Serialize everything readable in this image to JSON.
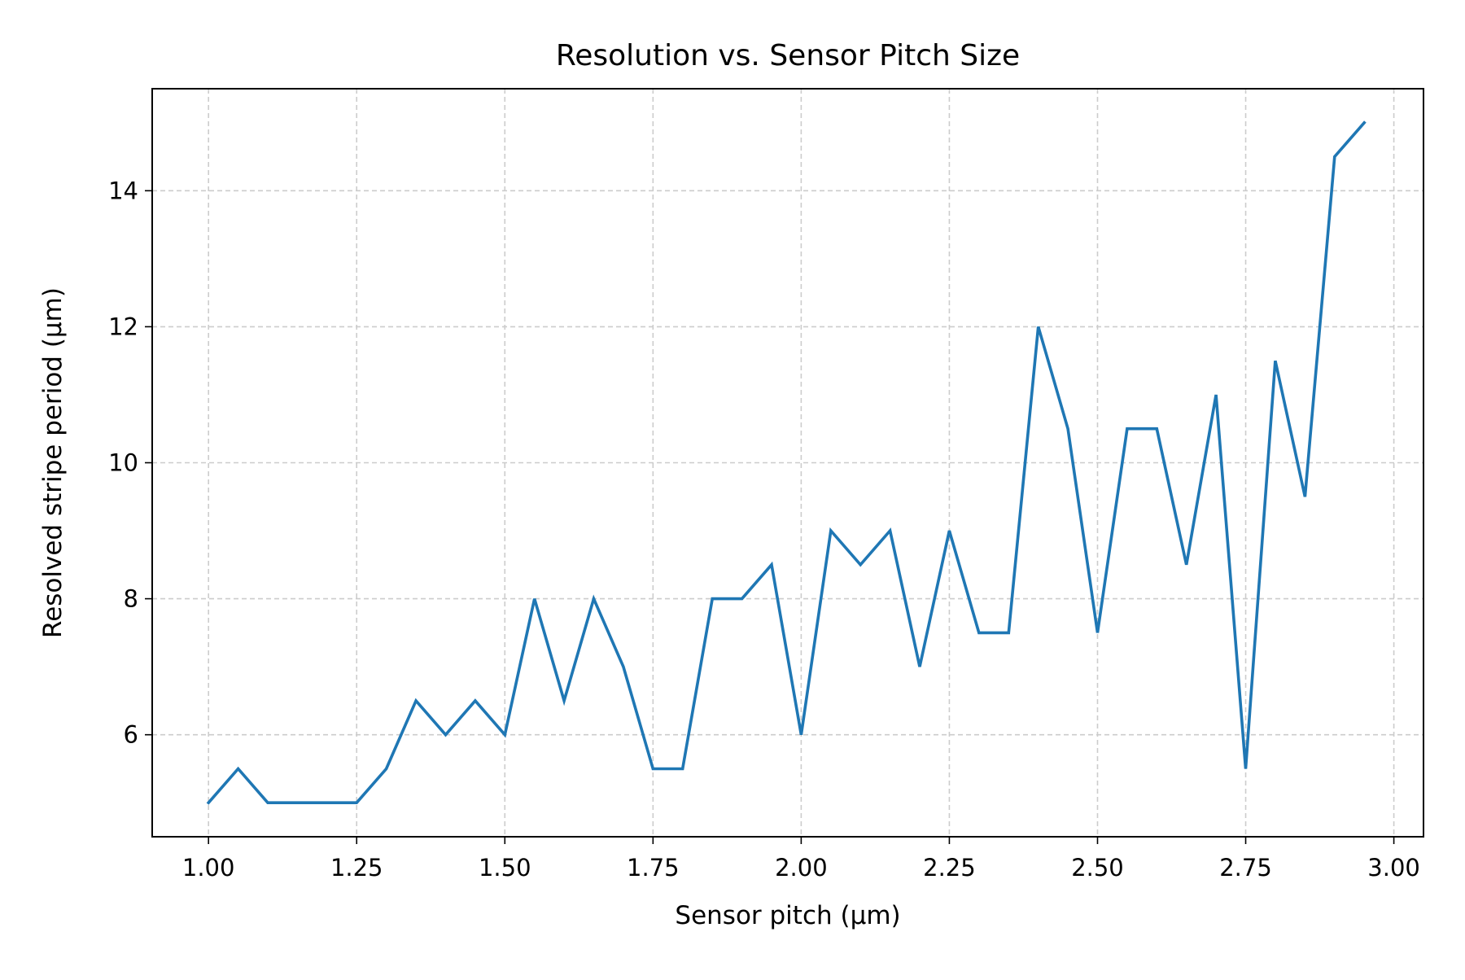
{
  "chart_data": {
    "type": "line",
    "title": "Resolution vs. Sensor Pitch Size",
    "xlabel": "Sensor pitch (µm)",
    "ylabel": "Resolved stripe period (µm)",
    "xlim": [
      0.905,
      3.05
    ],
    "ylim": [
      4.5,
      15.5
    ],
    "xticks": [
      "1.00",
      "1.25",
      "1.50",
      "1.75",
      "2.00",
      "2.25",
      "2.50",
      "2.75",
      "3.00"
    ],
    "yticks": [
      "6",
      "8",
      "10",
      "12",
      "14"
    ],
    "grid": true,
    "series": [
      {
        "color": "#1f77b4",
        "x": [
          1.0,
          1.05,
          1.1,
          1.15,
          1.2,
          1.25,
          1.3,
          1.35,
          1.4,
          1.45,
          1.5,
          1.55,
          1.6,
          1.65,
          1.7,
          1.75,
          1.8,
          1.85,
          1.9,
          1.95,
          2.0,
          2.05,
          2.1,
          2.15,
          2.2,
          2.25,
          2.3,
          2.35,
          2.4,
          2.45,
          2.5,
          2.55,
          2.6,
          2.65,
          2.7,
          2.75,
          2.8,
          2.85,
          2.9,
          2.95
        ],
        "y": [
          5.0,
          5.5,
          5.0,
          5.0,
          5.0,
          5.0,
          5.5,
          6.5,
          6.0,
          6.5,
          6.0,
          8.0,
          6.5,
          8.0,
          7.0,
          5.5,
          5.5,
          8.0,
          8.0,
          8.5,
          6.0,
          9.0,
          8.5,
          9.0,
          7.0,
          9.0,
          7.5,
          7.5,
          12.0,
          10.5,
          7.5,
          10.5,
          10.5,
          8.5,
          11.0,
          5.5,
          11.5,
          9.5,
          14.5,
          15.0
        ]
      }
    ]
  }
}
